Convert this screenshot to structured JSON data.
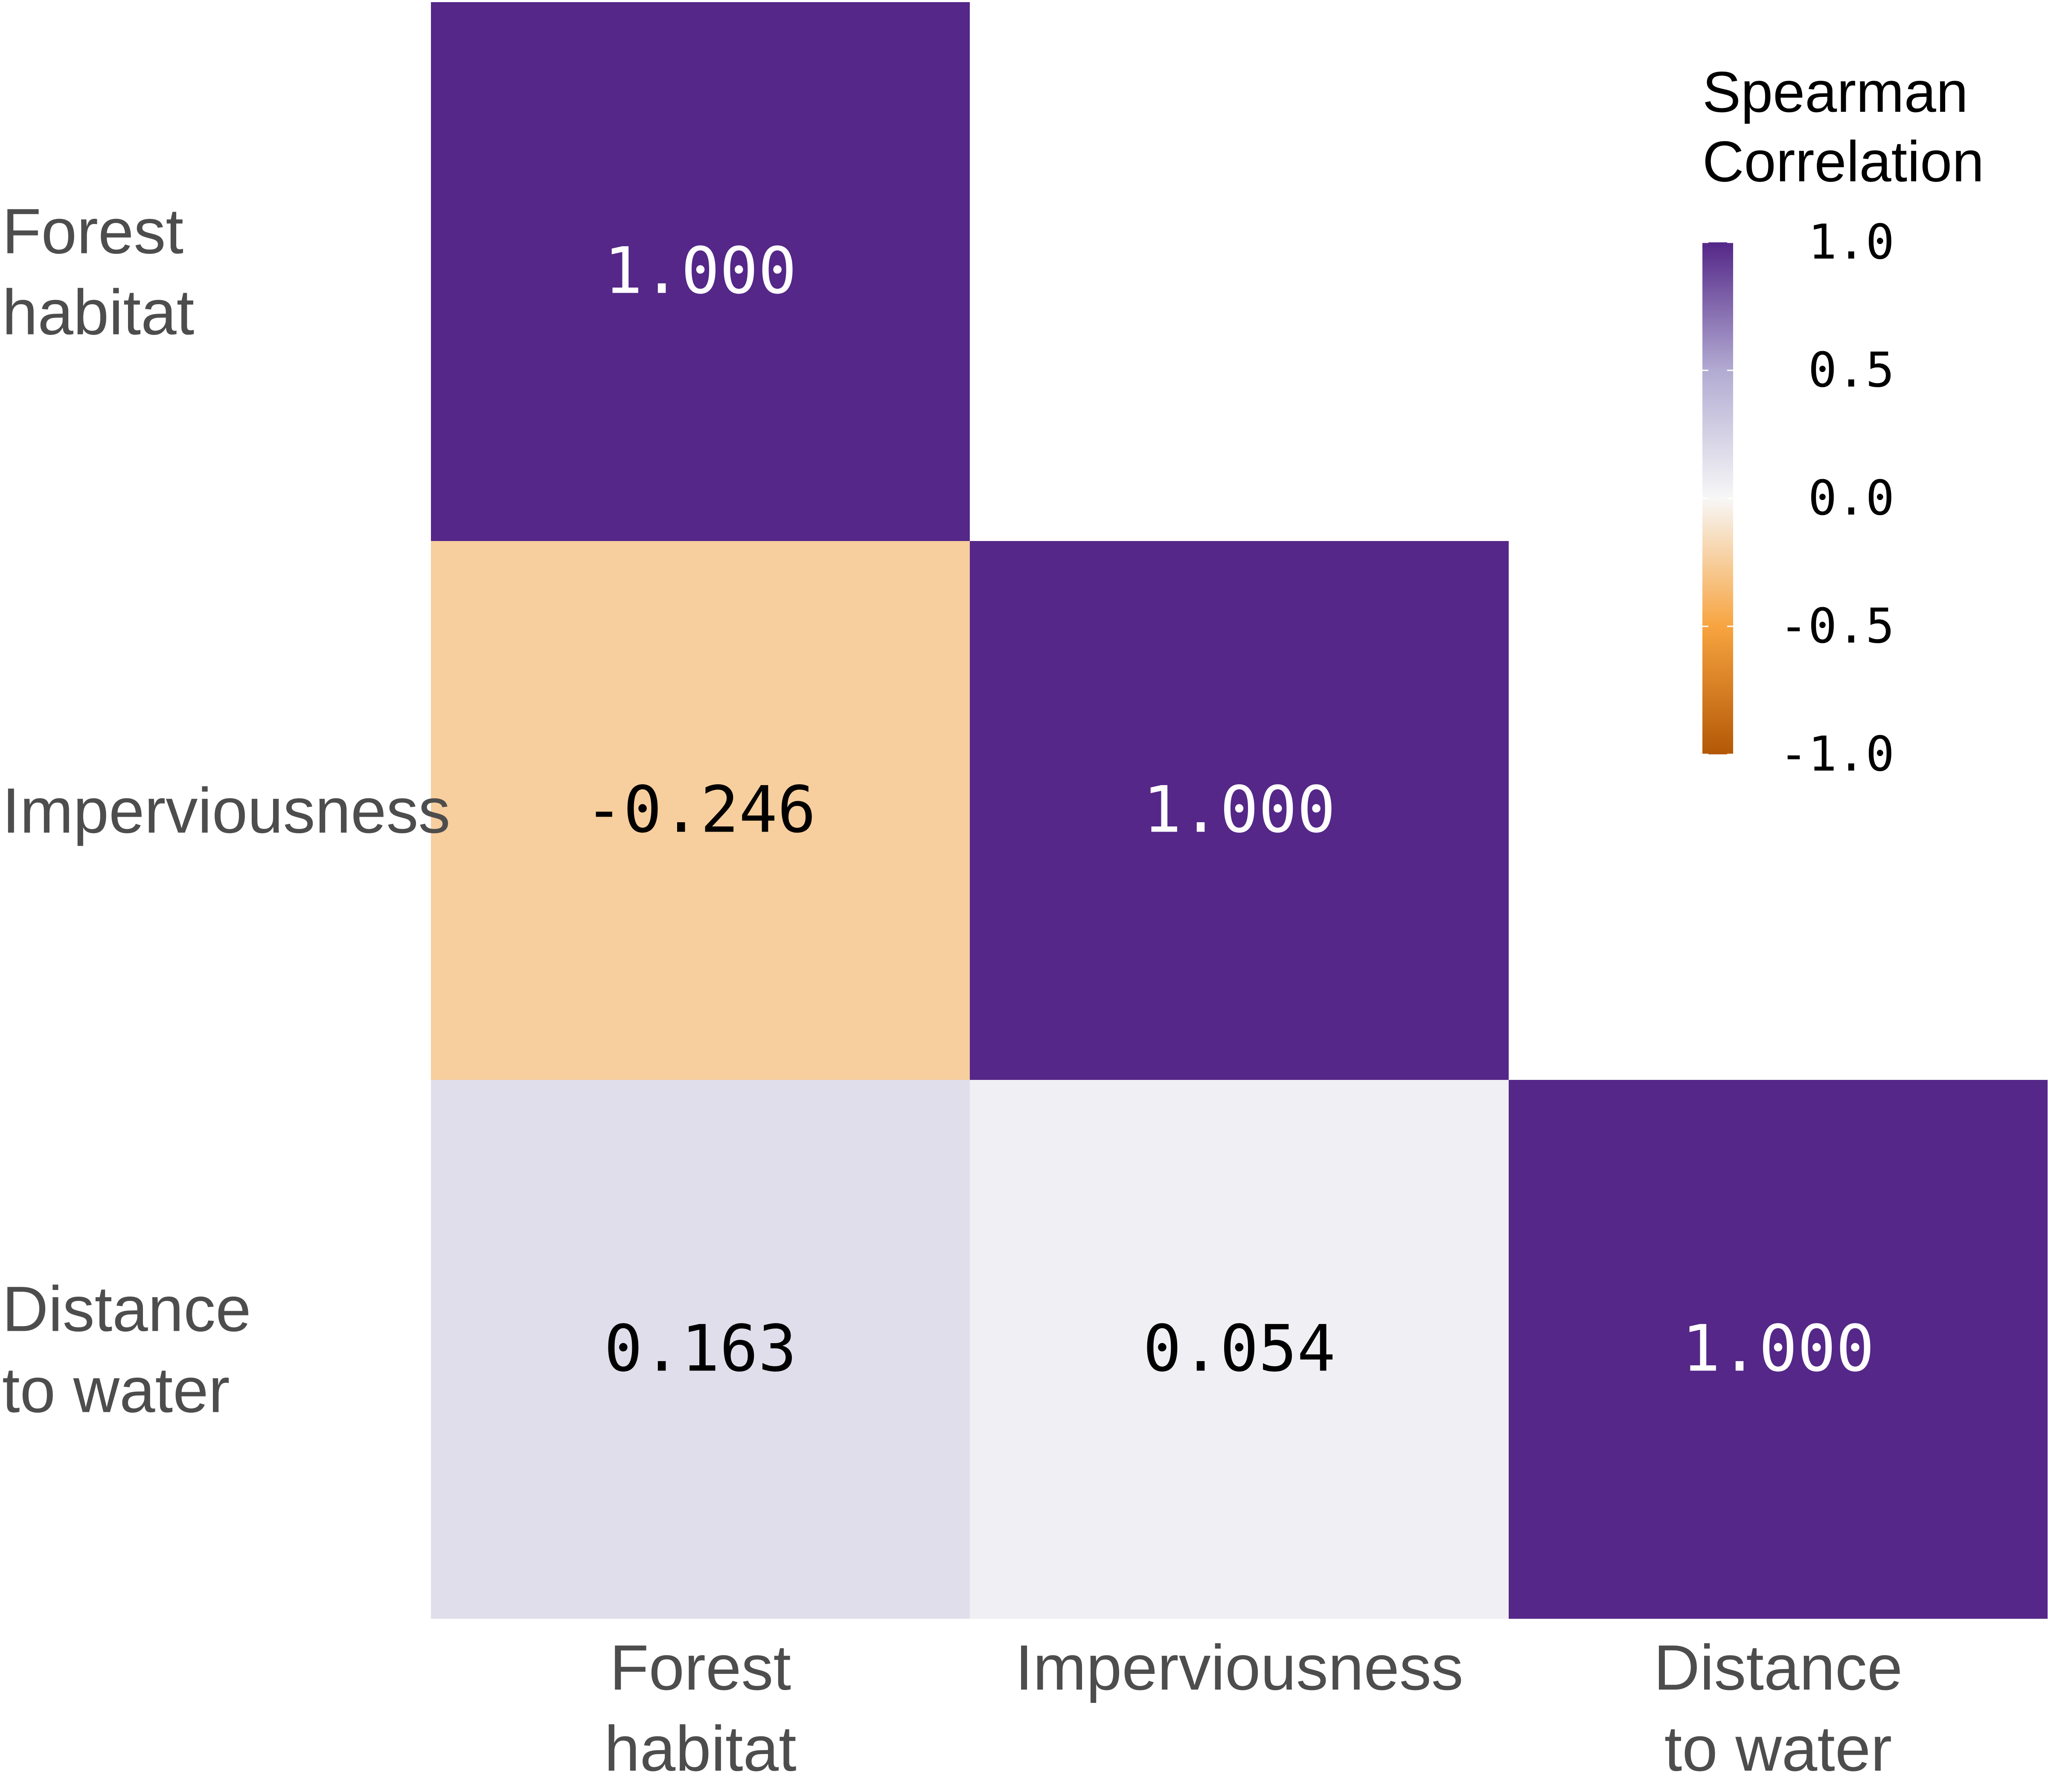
{
  "chart_data": {
    "type": "heatmap",
    "variables": [
      [
        "Forest",
        "habitat"
      ],
      [
        "Imperviousness"
      ],
      [
        "Distance",
        "to water"
      ]
    ],
    "cells": [
      {
        "row": 0,
        "col": 0,
        "value": 1.0,
        "label": "1.000"
      },
      {
        "row": 1,
        "col": 0,
        "value": -0.246,
        "label": "-0.246"
      },
      {
        "row": 1,
        "col": 1,
        "value": 1.0,
        "label": "1.000"
      },
      {
        "row": 2,
        "col": 0,
        "value": 0.163,
        "label": "0.163"
      },
      {
        "row": 2,
        "col": 1,
        "value": 0.054,
        "label": "0.054"
      },
      {
        "row": 2,
        "col": 2,
        "value": 1.0,
        "label": "1.000"
      }
    ],
    "legend": {
      "title": [
        "Spearman",
        "Correlation"
      ],
      "range": [
        -1.0,
        1.0
      ],
      "ticks": [
        1.0,
        0.5,
        0.0,
        -0.5,
        -1.0
      ],
      "tick_labels": [
        "1.0",
        "0.5",
        "0.0",
        "-0.5",
        "-1.0"
      ],
      "position": "top-right"
    },
    "colors": {
      "high": "#542788",
      "mid_high": "#b2abd2",
      "mid": "#f7f7f7",
      "mid_low": "#f7a440",
      "low": "#b35806"
    },
    "grid": false
  }
}
